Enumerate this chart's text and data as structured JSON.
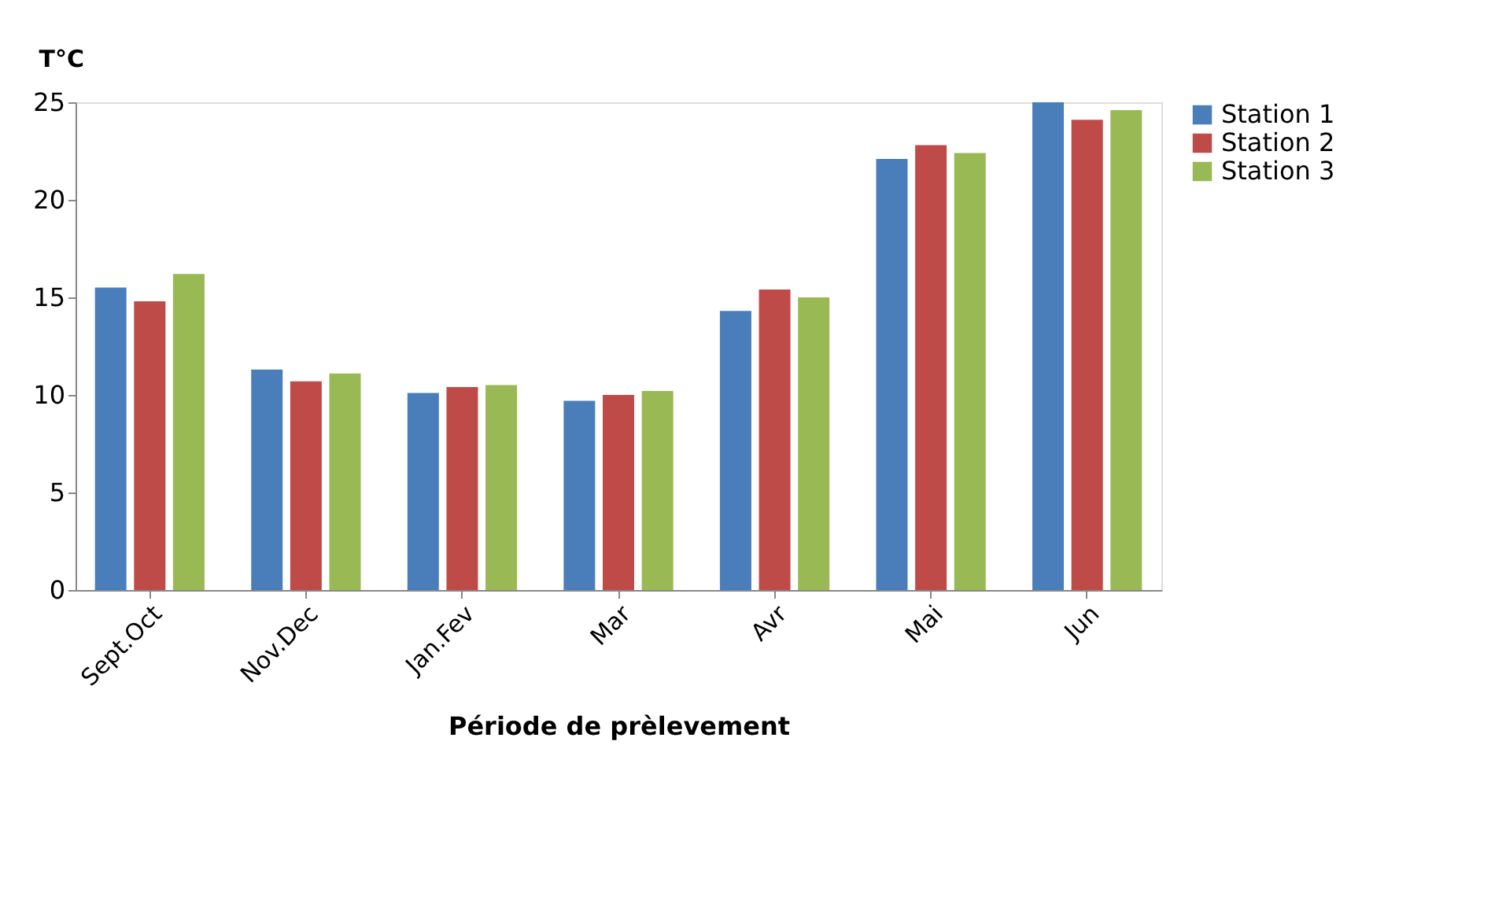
{
  "chart_data": {
    "type": "bar",
    "xlabel": "Période de prèlevement",
    "ylabel": "T°C",
    "categories": [
      "Sept.Oct",
      "Nov.Dec",
      "Jan.Fev",
      "Mar",
      "Avr",
      "Mai",
      "Jun"
    ],
    "series": [
      {
        "name": "Station 1",
        "color": "#4a7ebb",
        "values": [
          15.5,
          11.3,
          10.1,
          9.7,
          14.3,
          22.1,
          25.0
        ]
      },
      {
        "name": "Station 2",
        "color": "#be4b48",
        "values": [
          14.8,
          10.7,
          10.4,
          10.0,
          15.4,
          22.8,
          24.1
        ]
      },
      {
        "name": "Station 3",
        "color": "#98b954",
        "values": [
          16.2,
          11.1,
          10.5,
          10.2,
          15.0,
          22.4,
          24.6
        ]
      }
    ],
    "ylim": [
      0,
      25
    ],
    "yticks": [
      0,
      5,
      10,
      15,
      20,
      25
    ],
    "grid": false,
    "legend": "top right"
  }
}
